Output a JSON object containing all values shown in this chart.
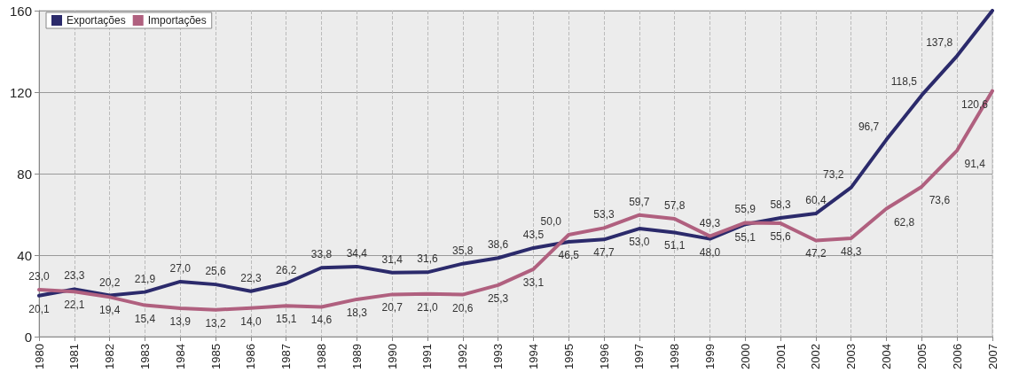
{
  "chart_data": {
    "type": "line",
    "categories": [
      "1980",
      "1981",
      "1982",
      "1983",
      "1984",
      "1985",
      "1986",
      "1987",
      "1988",
      "1989",
      "1990",
      "1991",
      "1992",
      "1993",
      "1994",
      "1995",
      "1996",
      "1997",
      "1998",
      "1999",
      "2000",
      "2001",
      "2002",
      "2003",
      "2004",
      "2005",
      "2006",
      "2007"
    ],
    "series": [
      {
        "name": "Exportações",
        "color": "#2b2a6b",
        "values": [
          20.1,
          23.3,
          20.2,
          21.9,
          27.0,
          25.6,
          22.3,
          26.2,
          33.8,
          34.4,
          31.4,
          31.6,
          35.8,
          38.6,
          43.5,
          46.5,
          47.7,
          53.0,
          51.1,
          48.0,
          55.1,
          58.3,
          60.4,
          73.2,
          96.7,
          118.5,
          137.8,
          160.0
        ],
        "value_labels": [
          "20,1",
          "23,3",
          "20,2",
          "21,9",
          "27,0",
          "25,6",
          "22,3",
          "26,2",
          "33,8",
          "34,4",
          "31,4",
          "31,6",
          "35,8",
          "38,6",
          "43,5",
          "46,5",
          "47,7",
          "53,0",
          "51,1",
          "48,0",
          "55,1",
          "58,3",
          "60,4",
          "73,2",
          "96,7",
          "118,5",
          "137,8",
          null
        ]
      },
      {
        "name": "Importações",
        "color": "#b0607f",
        "values": [
          23.0,
          22.1,
          19.4,
          15.4,
          13.9,
          13.2,
          14.0,
          15.1,
          14.6,
          18.3,
          20.7,
          21.0,
          20.6,
          25.3,
          33.1,
          50.0,
          53.3,
          59.7,
          57.8,
          49.3,
          55.9,
          55.6,
          47.2,
          48.3,
          62.8,
          73.6,
          91.4,
          120.6
        ],
        "value_labels": [
          "23,0",
          "22,1",
          "19,4",
          "15,4",
          "13,9",
          "13,2",
          "14,0",
          "15,1",
          "14,6",
          "18,3",
          "20,7",
          "21,0",
          "20,6",
          "25,3",
          "33,1",
          "50,0",
          "53,3",
          "59,7",
          "57,8",
          "49,3",
          "55,9",
          "55,6",
          "47,2",
          "48,3",
          "62,8",
          "73,6",
          "91,4",
          "120,6"
        ]
      }
    ],
    "ylim": [
      0,
      160
    ],
    "yticks": [
      0,
      40,
      80,
      120,
      160
    ],
    "grid": true,
    "legend": "top left",
    "marker": "none",
    "line_style": "solid"
  }
}
